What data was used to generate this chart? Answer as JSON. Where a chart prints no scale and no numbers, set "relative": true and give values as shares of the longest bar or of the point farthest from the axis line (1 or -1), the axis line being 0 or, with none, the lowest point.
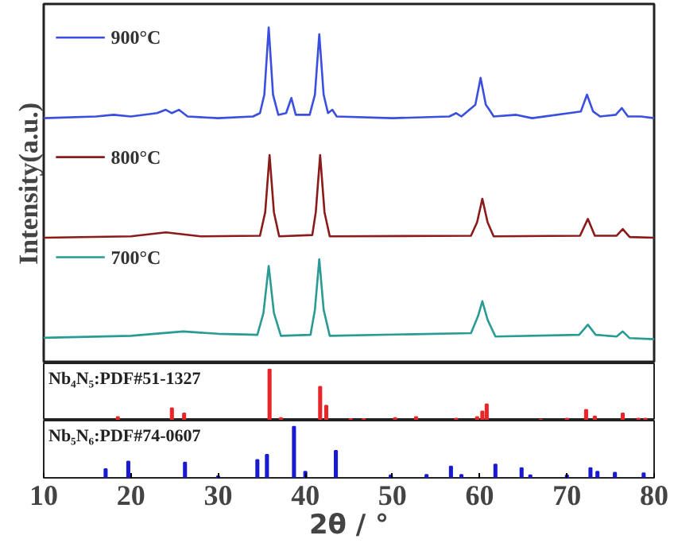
{
  "chart_data": [
    {
      "type": "line",
      "relative": true,
      "ylabel": "Intensity(a.u.)",
      "legend": "top left",
      "tick_labels": false,
      "xlim": [
        10,
        80
      ],
      "xticks": [
        10,
        20,
        30,
        40,
        50,
        60,
        70,
        80
      ],
      "series": [
        {
          "name": "900°C",
          "color": "#3a4fe0",
          "x": [
            10,
            16,
            18,
            20,
            23,
            24,
            24.7,
            25.5,
            26.5,
            30,
            34,
            34.8,
            35.3,
            35.8,
            36.3,
            36.9,
            37.8,
            38.4,
            38.9,
            40.5,
            41.1,
            41.6,
            42.1,
            42.6,
            43.1,
            43.6,
            50,
            56.5,
            57.3,
            57.9,
            59.5,
            60.1,
            60.7,
            61.1,
            61.6,
            64.2,
            66,
            71.6,
            72.3,
            73.0,
            73.8,
            75.6,
            76.3,
            77,
            78.5,
            80
          ],
          "values": [
            0.73,
            0.735,
            0.74,
            0.735,
            0.745,
            0.755,
            0.745,
            0.755,
            0.735,
            0.73,
            0.735,
            0.745,
            0.8,
            1.0,
            0.8,
            0.74,
            0.745,
            0.79,
            0.74,
            0.74,
            0.8,
            0.98,
            0.8,
            0.745,
            0.755,
            0.735,
            0.73,
            0.735,
            0.745,
            0.735,
            0.77,
            0.85,
            0.77,
            0.755,
            0.735,
            0.74,
            0.73,
            0.75,
            0.8,
            0.75,
            0.735,
            0.74,
            0.76,
            0.735,
            0.735,
            0.73
          ]
        },
        {
          "name": "800°C",
          "color": "#8b1a1a",
          "x": [
            10,
            20,
            24,
            28,
            34.8,
            35.4,
            35.9,
            36.4,
            37,
            40.8,
            41.2,
            41.7,
            42.2,
            42.8,
            59,
            59.7,
            60.3,
            60.9,
            61.6,
            71.5,
            72.4,
            73.2,
            75.7,
            76.4,
            77.2,
            80
          ],
          "values": [
            0.374,
            0.378,
            0.39,
            0.378,
            0.38,
            0.45,
            0.62,
            0.45,
            0.378,
            0.382,
            0.45,
            0.62,
            0.45,
            0.378,
            0.38,
            0.42,
            0.49,
            0.42,
            0.378,
            0.38,
            0.43,
            0.38,
            0.38,
            0.4,
            0.376,
            0.374
          ]
        },
        {
          "name": "700°C",
          "color": "#2a9a94",
          "x": [
            10,
            20,
            26,
            30,
            34.5,
            35.2,
            35.8,
            36.4,
            37.2,
            40.6,
            41.1,
            41.6,
            42.1,
            42.8,
            59,
            59.8,
            60.3,
            60.9,
            61.8,
            71.4,
            72.4,
            73.3,
            75.7,
            76.4,
            77.2,
            80
          ],
          "values": [
            0.076,
            0.082,
            0.095,
            0.088,
            0.085,
            0.15,
            0.29,
            0.15,
            0.082,
            0.085,
            0.16,
            0.31,
            0.16,
            0.082,
            0.09,
            0.14,
            0.185,
            0.13,
            0.08,
            0.085,
            0.115,
            0.085,
            0.08,
            0.095,
            0.075,
            0.072
          ]
        }
      ]
    },
    {
      "type": "bar",
      "relative": true,
      "title": "Nb₄N₅:PDF#51-1327",
      "tick_labels": false,
      "xlim": [
        10,
        80
      ],
      "xticks": [
        10,
        20,
        30,
        40,
        50,
        60,
        70,
        80
      ],
      "color": "#e8262a",
      "x": [
        18.5,
        24.7,
        26.1,
        35.9,
        37.2,
        41.7,
        42.4,
        45.2,
        46.7,
        50.3,
        52.7,
        57.3,
        59.7,
        60.3,
        60.8,
        67,
        70,
        72.2,
        73.2,
        76.4,
        78.2,
        79
      ],
      "values": [
        0.07,
        0.24,
        0.14,
        1.0,
        0.05,
        0.66,
        0.29,
        0.03,
        0.03,
        0.05,
        0.07,
        0.04,
        0.07,
        0.18,
        0.32,
        0.02,
        0.04,
        0.21,
        0.08,
        0.14,
        0.04,
        0.04
      ]
    },
    {
      "type": "bar",
      "relative": true,
      "title": "Nb₅N₆:PDF#74-0607",
      "tick_labels": "x",
      "xlabel": "2θ / °",
      "xlim": [
        10,
        80
      ],
      "xticks": [
        10,
        20,
        30,
        40,
        50,
        60,
        70,
        80
      ],
      "color": "#1a1ad0",
      "x": [
        17.1,
        19.7,
        26.2,
        30,
        34.5,
        35.6,
        38.7,
        40,
        43.5,
        49.8,
        53.9,
        56.7,
        57.9,
        61.8,
        64.8,
        65.8,
        70,
        72.7,
        73.5,
        75.5,
        78.8
      ],
      "values": [
        0.17,
        0.32,
        0.3,
        0.03,
        0.35,
        0.45,
        1.0,
        0.12,
        0.53,
        0.05,
        0.06,
        0.22,
        0.06,
        0.26,
        0.19,
        0.05,
        0.05,
        0.19,
        0.12,
        0.1,
        0.09
      ]
    }
  ]
}
